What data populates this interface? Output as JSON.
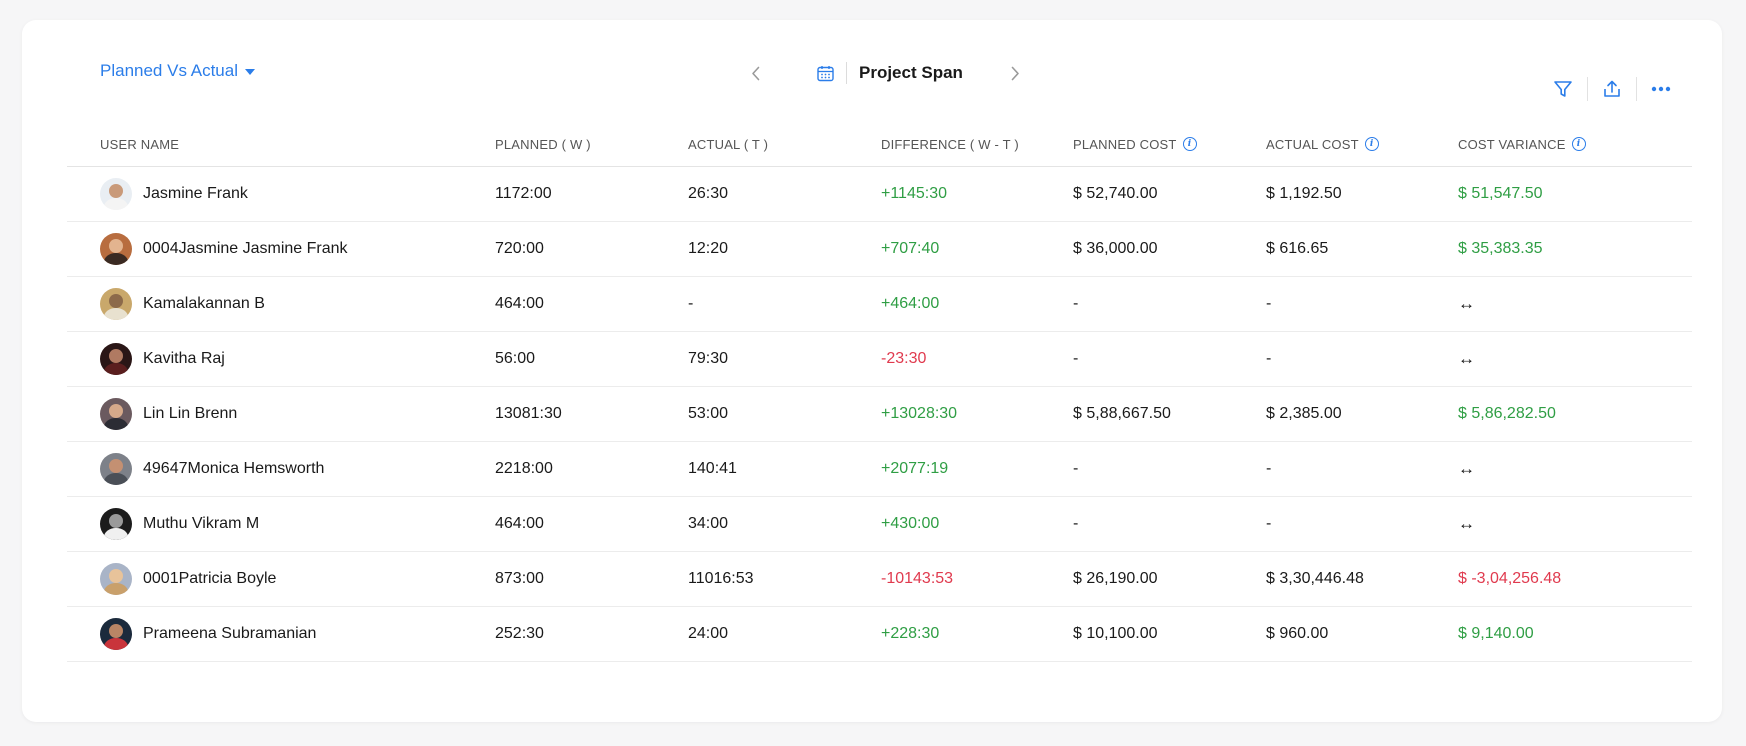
{
  "toolbar": {
    "view_label": "Planned Vs Actual",
    "period_label": "Project Span",
    "icons": {
      "prev": "chevron-left-icon",
      "next": "chevron-right-icon",
      "calendar": "calendar-icon",
      "filter": "filter-icon",
      "export": "export-icon",
      "more": "more-icon"
    }
  },
  "colors": {
    "accent": "#2b7de9",
    "positive": "#2f9e44",
    "negative": "#e03a4e"
  },
  "table": {
    "headers": {
      "user_name": "USER NAME",
      "planned": "PLANNED  ( W )",
      "actual": "ACTUAL  ( T )",
      "difference": "DIFFERENCE  ( W - T )",
      "planned_cost": "PLANNED COST",
      "actual_cost": "ACTUAL COST",
      "cost_variance": "COST VARIANCE"
    },
    "rows": [
      {
        "name": "Jasmine Frank",
        "planned": "1172:00",
        "actual": "26:30",
        "difference": "+1145:30",
        "diff_sign": "pos",
        "planned_cost": "$ 52,740.00",
        "actual_cost": "$ 1,192.50",
        "variance": "$ 51,547.50",
        "var_sign": "pos",
        "avatar": {
          "bg": "#e9eef3",
          "skin": "#c99a7a",
          "cloth": "#f4f4f4"
        }
      },
      {
        "name": "0004Jasmine Jasmine Frank",
        "planned": "720:00",
        "actual": "12:20",
        "difference": "+707:40",
        "diff_sign": "pos",
        "planned_cost": "$ 36,000.00",
        "actual_cost": "$ 616.65",
        "variance": "$ 35,383.35",
        "var_sign": "pos",
        "avatar": {
          "bg": "#b86d3f",
          "skin": "#e3b48f",
          "cloth": "#3a2a22"
        }
      },
      {
        "name": "Kamalakannan B",
        "planned": "464:00",
        "actual": "-",
        "difference": "+464:00",
        "diff_sign": "pos",
        "planned_cost": "-",
        "actual_cost": "-",
        "variance": "↔",
        "var_sign": "swap",
        "avatar": {
          "bg": "#c9a86b",
          "skin": "#8c6a4a",
          "cloth": "#e8e1cf"
        }
      },
      {
        "name": "Kavitha Raj",
        "planned": "56:00",
        "actual": "79:30",
        "difference": "-23:30",
        "diff_sign": "neg",
        "planned_cost": "-",
        "actual_cost": "-",
        "variance": "↔",
        "var_sign": "swap",
        "avatar": {
          "bg": "#2a1616",
          "skin": "#b07a62",
          "cloth": "#5a1e1e"
        }
      },
      {
        "name": "Lin Lin Brenn",
        "planned": "13081:30",
        "actual": "53:00",
        "difference": "+13028:30",
        "diff_sign": "pos",
        "planned_cost": "$ 5,88,667.50",
        "actual_cost": "$ 2,385.00",
        "variance": "$ 5,86,282.50",
        "var_sign": "pos",
        "avatar": {
          "bg": "#6b5a5f",
          "skin": "#d6a98a",
          "cloth": "#2c2c34"
        }
      },
      {
        "name": "49647Monica Hemsworth",
        "planned": "2218:00",
        "actual": "140:41",
        "difference": "+2077:19",
        "diff_sign": "pos",
        "planned_cost": "-",
        "actual_cost": "-",
        "variance": "↔",
        "var_sign": "swap",
        "avatar": {
          "bg": "#7d8189",
          "skin": "#c49072",
          "cloth": "#4a4f57"
        }
      },
      {
        "name": "Muthu Vikram M",
        "planned": "464:00",
        "actual": "34:00",
        "difference": "+430:00",
        "diff_sign": "pos",
        "planned_cost": "-",
        "actual_cost": "-",
        "variance": "↔",
        "var_sign": "swap",
        "avatar": {
          "bg": "#1c1c1c",
          "skin": "#9a9a9a",
          "cloth": "#f0f0f0"
        }
      },
      {
        "name": "0001Patricia Boyle",
        "planned": "873:00",
        "actual": "11016:53",
        "difference": "-10143:53",
        "diff_sign": "neg",
        "planned_cost": "$ 26,190.00",
        "actual_cost": "$ 3,30,446.48",
        "variance": "$ -3,04,256.48",
        "var_sign": "neg",
        "avatar": {
          "bg": "#a9b4c7",
          "skin": "#e8c39a",
          "cloth": "#c9a06b"
        }
      },
      {
        "name": "Prameena Subramanian",
        "planned": "252:30",
        "actual": "24:00",
        "difference": "+228:30",
        "diff_sign": "pos",
        "planned_cost": "$ 10,100.00",
        "actual_cost": "$ 960.00",
        "variance": "$ 9,140.00",
        "var_sign": "pos",
        "avatar": {
          "bg": "#1b2a3c",
          "skin": "#b98565",
          "cloth": "#c9343b"
        }
      }
    ]
  }
}
